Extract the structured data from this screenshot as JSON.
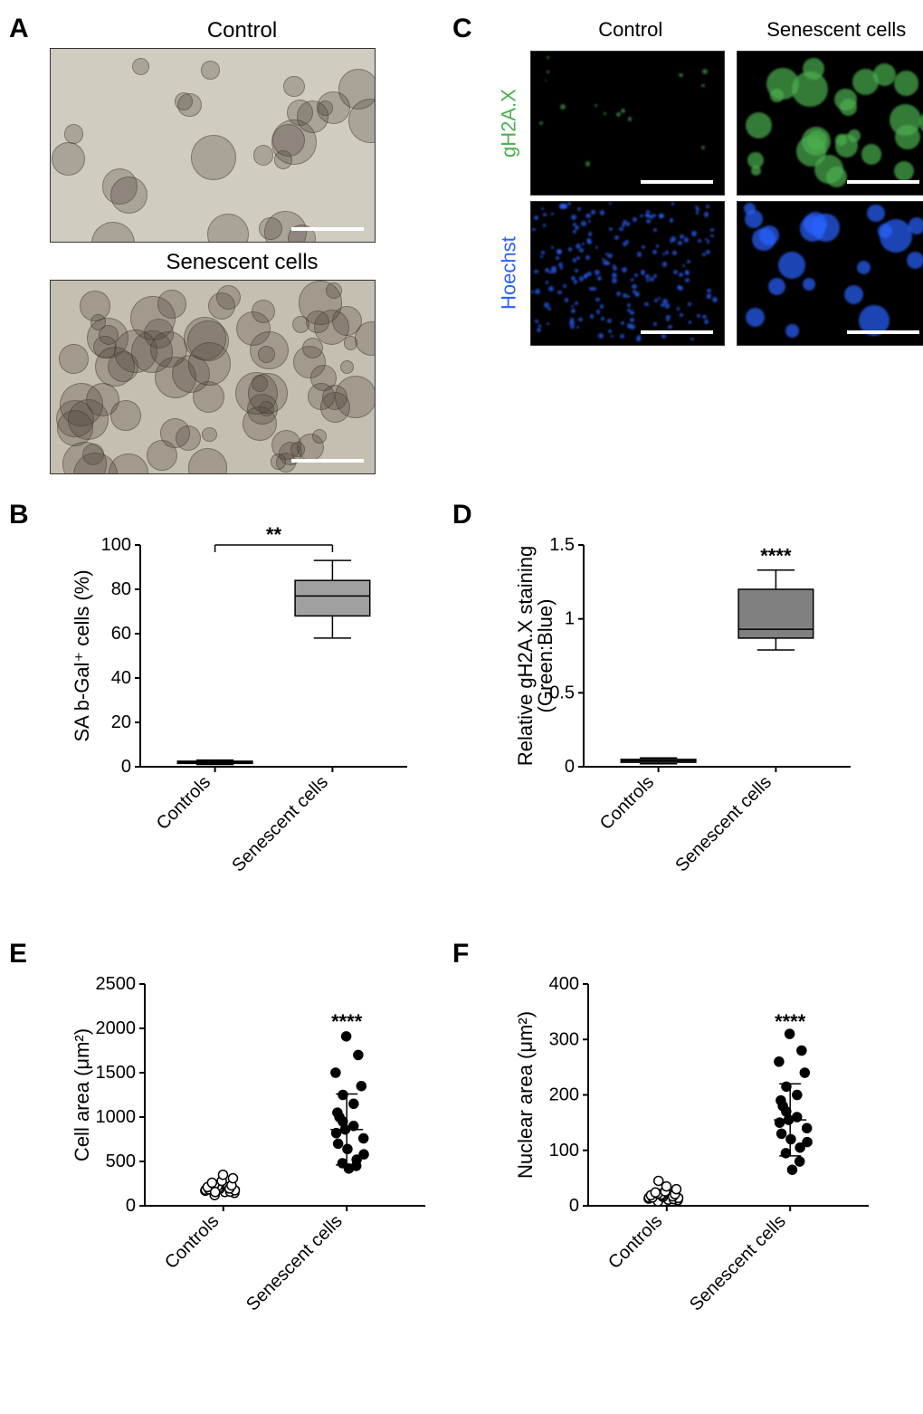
{
  "panelA": {
    "label": "A",
    "images": [
      {
        "title": "Control",
        "background": "#d0ccc0",
        "cell_density": "sparse"
      },
      {
        "title": "Senescent cells",
        "background": "#c4bfb0",
        "cell_density": "dense"
      }
    ]
  },
  "panelC": {
    "label": "C",
    "col_titles": [
      "Control",
      "Senescent cells"
    ],
    "row_labels": [
      {
        "text": "gH2A.X",
        "color": "#4caf50"
      },
      {
        "text": "Hoechst",
        "color": "#2962ff"
      }
    ],
    "grid_bg": "#000000",
    "green_color": "#4caf50",
    "blue_color": "#2962ff"
  },
  "panelB": {
    "label": "B",
    "type": "boxplot",
    "ylabel": "SA b-Gal⁺ cells (%)",
    "ylabel_fontsize": 22,
    "ylim": [
      0,
      100
    ],
    "ytick_step": 20,
    "categories": [
      "Controls",
      "Senescent cells"
    ],
    "boxes": [
      {
        "min": 1,
        "q1": 1.5,
        "median": 2,
        "q3": 2.5,
        "max": 3,
        "fill": "#a0a0a0"
      },
      {
        "min": 58,
        "q1": 68,
        "median": 77,
        "q3": 84,
        "max": 93,
        "fill": "#a0a0a0"
      }
    ],
    "significance": {
      "text": "**",
      "bracket": true,
      "y": 100
    },
    "axis_color": "#000000",
    "label_fontsize": 20
  },
  "panelD": {
    "label": "D",
    "type": "boxplot",
    "ylabel": "Relative gH2A.X staining\n(Green:Blue)",
    "ylabel_fontsize": 22,
    "ylim": [
      0,
      1.5
    ],
    "ytick_step": 0.5,
    "categories": [
      "Controls",
      "Senescent cells"
    ],
    "boxes": [
      {
        "min": 0.02,
        "q1": 0.03,
        "median": 0.04,
        "q3": 0.05,
        "max": 0.06,
        "fill": "#808080"
      },
      {
        "min": 0.79,
        "q1": 0.87,
        "median": 0.93,
        "q3": 1.2,
        "max": 1.33,
        "fill": "#808080"
      }
    ],
    "significance": {
      "text": "****",
      "bracket": false,
      "y": 1.38
    },
    "axis_color": "#000000",
    "label_fontsize": 20
  },
  "panelE": {
    "label": "E",
    "type": "scatter",
    "ylabel": "Cell area (μm²)",
    "ylabel_fontsize": 22,
    "ylim": [
      0,
      2500
    ],
    "ytick_step": 500,
    "categories": [
      "Controls",
      "Senescent cells"
    ],
    "groups": [
      {
        "marker": "open",
        "fill": "#ffffff",
        "stroke": "#000000",
        "values": [
          120,
          145,
          155,
          160,
          170,
          175,
          180,
          185,
          190,
          195,
          200,
          210,
          220,
          230,
          240,
          260,
          280,
          310,
          350,
          155
        ]
      },
      {
        "marker": "closed",
        "fill": "#000000",
        "stroke": "#000000",
        "values": [
          420,
          450,
          480,
          520,
          580,
          640,
          700,
          760,
          820,
          860,
          900,
          950,
          1000,
          1050,
          1150,
          1250,
          1350,
          1500,
          1700,
          1910
        ]
      }
    ],
    "error_bars": [
      {
        "mean": 200,
        "sd": 60
      },
      {
        "mean": 860,
        "sd": 400
      }
    ],
    "significance": {
      "text": "****",
      "bracket": false,
      "y": 2000
    },
    "axis_color": "#000000",
    "label_fontsize": 20,
    "marker_size": 5
  },
  "panelF": {
    "label": "F",
    "type": "scatter",
    "ylabel": "Nuclear area (μm²)",
    "ylabel_fontsize": 22,
    "ylim": [
      0,
      400
    ],
    "ytick_step": 100,
    "categories": [
      "Controls",
      "Senescent cells"
    ],
    "groups": [
      {
        "marker": "open",
        "fill": "#ffffff",
        "stroke": "#000000",
        "values": [
          8,
          10,
          11,
          12,
          13,
          14,
          15,
          15,
          16,
          17,
          18,
          19,
          20,
          21,
          22,
          24,
          26,
          30,
          35,
          45
        ]
      },
      {
        "marker": "closed",
        "fill": "#000000",
        "stroke": "#000000",
        "values": [
          65,
          80,
          95,
          105,
          115,
          120,
          130,
          140,
          150,
          155,
          160,
          170,
          180,
          190,
          200,
          215,
          240,
          260,
          280,
          310
        ]
      }
    ],
    "error_bars": [
      {
        "mean": 18,
        "sd": 10
      },
      {
        "mean": 155,
        "sd": 65
      }
    ],
    "significance": {
      "text": "****",
      "bracket": false,
      "y": 320
    },
    "axis_color": "#000000",
    "label_fontsize": 20,
    "marker_size": 5
  }
}
